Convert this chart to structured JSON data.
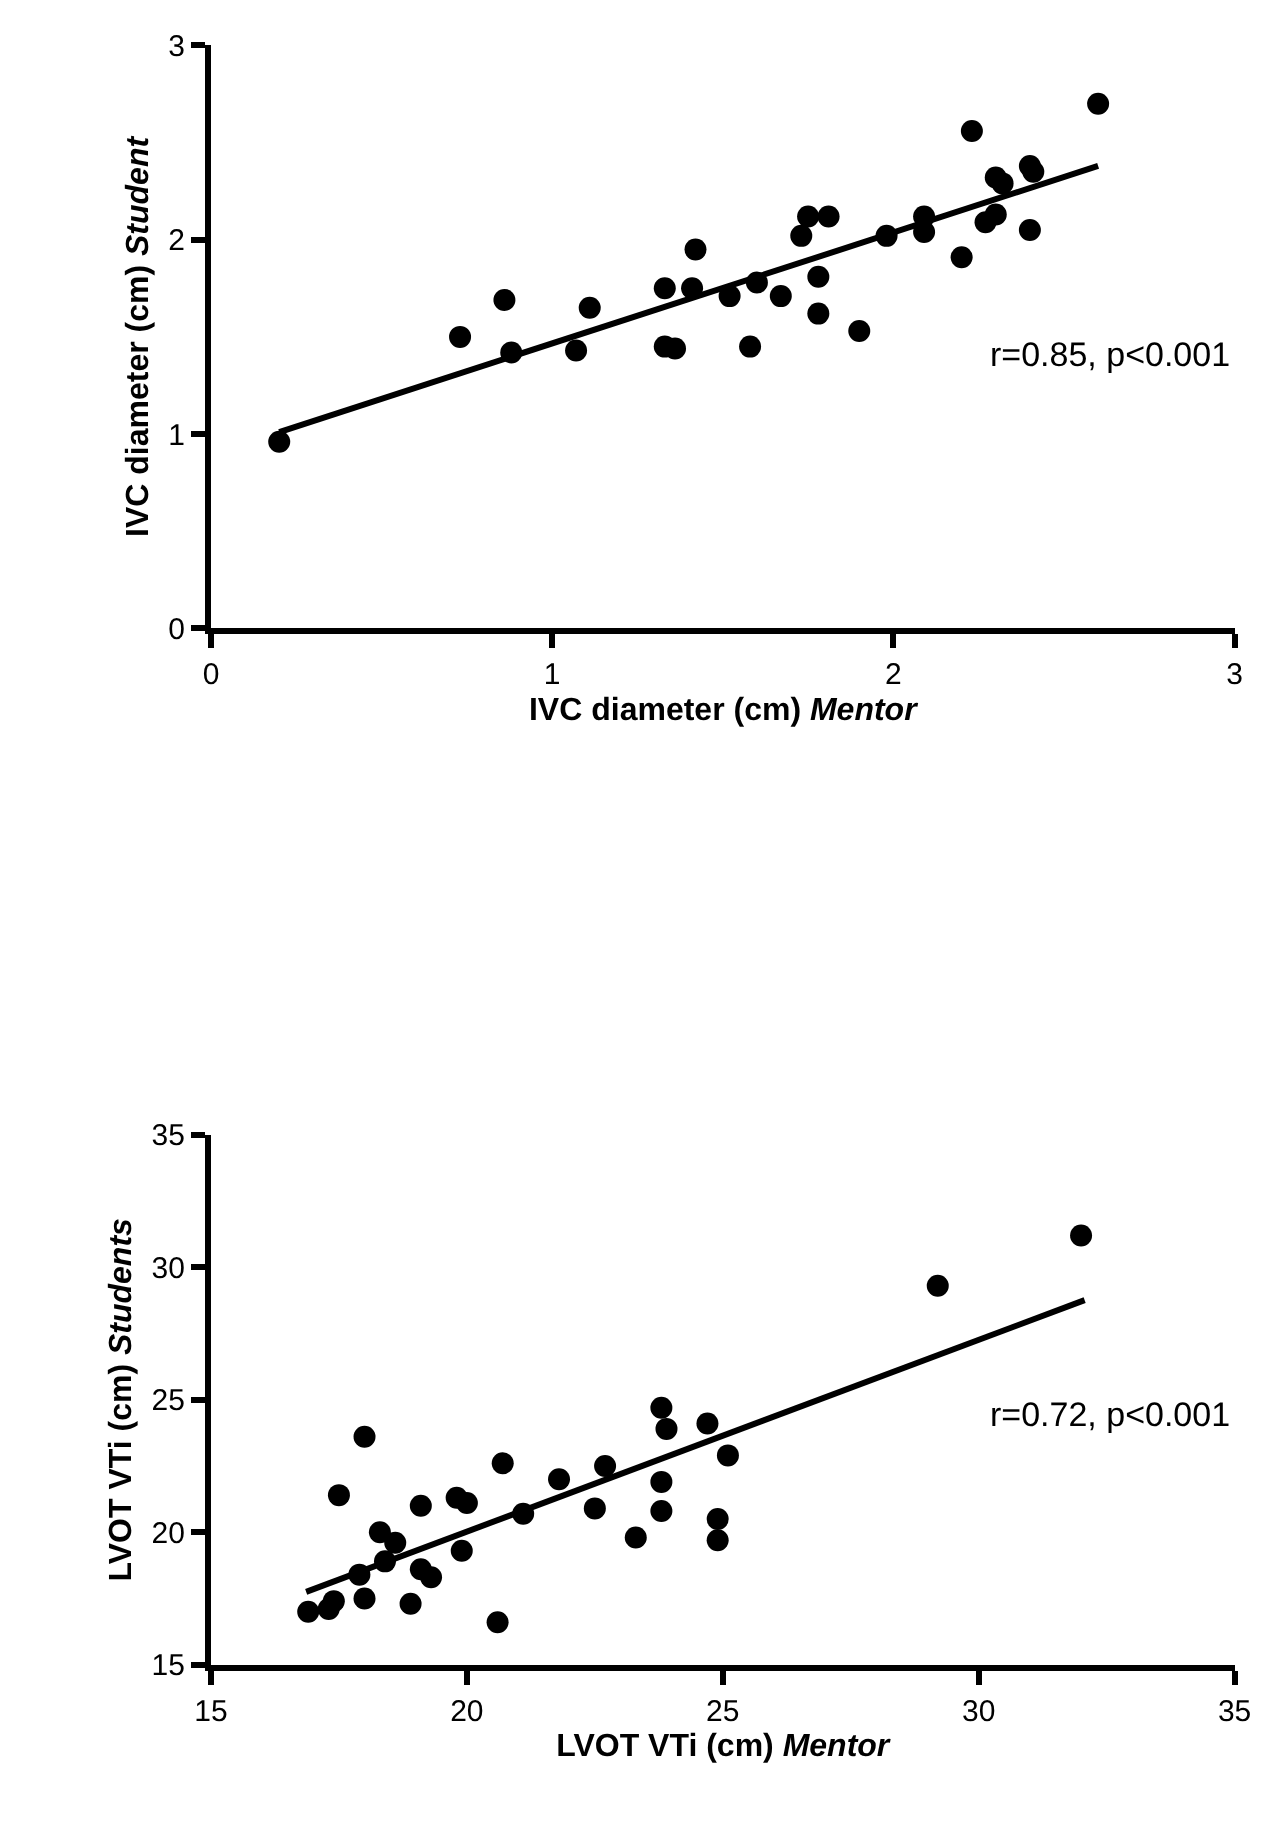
{
  "chart_data": [
    {
      "type": "scatter",
      "xlabel": "IVC diameter (cm) Mentor",
      "ylabel": "IVC diameter (cm) Student",
      "annotations": [
        "r=0.85, p<0.001"
      ],
      "xlim": [
        0,
        3
      ],
      "xticks": [
        0,
        1,
        2,
        3
      ],
      "ylim": [
        0,
        3
      ],
      "yticks": [
        0,
        1,
        2,
        3
      ],
      "series": [
        {
          "color": "#000000",
          "marker": "circle",
          "x": [
            0.2,
            0.73,
            0.86,
            0.88,
            1.07,
            1.11,
            1.33,
            1.33,
            1.36,
            1.41,
            1.42,
            1.52,
            1.58,
            1.6,
            1.67,
            1.73,
            1.75,
            1.78,
            1.78,
            1.81,
            1.9,
            1.98,
            2.09,
            2.09,
            2.2,
            2.23,
            2.27,
            2.3,
            2.3,
            2.32,
            2.4,
            2.41,
            2.4,
            2.6
          ],
          "values": [
            0.96,
            1.5,
            1.69,
            1.42,
            1.43,
            1.65,
            1.75,
            1.45,
            1.44,
            1.75,
            1.95,
            1.71,
            1.45,
            1.78,
            1.71,
            2.02,
            2.12,
            1.81,
            1.62,
            2.12,
            1.53,
            2.02,
            2.12,
            2.04,
            1.91,
            2.56,
            2.09,
            2.13,
            2.32,
            2.29,
            2.38,
            2.35,
            2.05,
            2.7
          ]
        },
        {
          "type": "line",
          "marker": "none",
          "color": "#000000",
          "x": [
            0.2,
            2.6
          ],
          "values": [
            1.01,
            2.38
          ]
        }
      ]
    },
    {
      "type": "scatter",
      "xlabel": "LVOT VTi (cm) Mentor",
      "ylabel": "LVOT VTi (cm) Students",
      "annotations": [
        "r=0.72, p<0.001"
      ],
      "xlim": [
        15,
        35
      ],
      "xticks": [
        15,
        20,
        25,
        30,
        35
      ],
      "ylim": [
        15,
        35
      ],
      "yticks": [
        15,
        20,
        25,
        30,
        35
      ],
      "series": [
        {
          "color": "#000000",
          "marker": "circle",
          "x": [
            16.9,
            17.3,
            17.4,
            17.5,
            17.9,
            18.0,
            18.0,
            18.3,
            18.4,
            18.6,
            18.9,
            19.1,
            19.1,
            19.3,
            19.8,
            20.0,
            19.9,
            20.6,
            20.7,
            21.1,
            21.8,
            22.5,
            22.7,
            23.3,
            23.8,
            23.9,
            23.8,
            23.8,
            24.7,
            24.9,
            24.9,
            25.1,
            29.2,
            32.0
          ],
          "values": [
            17.0,
            17.1,
            17.4,
            21.4,
            18.4,
            23.6,
            17.5,
            20.0,
            18.9,
            19.6,
            17.3,
            21.0,
            18.6,
            18.3,
            21.3,
            21.1,
            19.3,
            16.6,
            22.6,
            20.7,
            22.0,
            20.9,
            22.5,
            19.8,
            24.7,
            23.9,
            21.9,
            20.8,
            24.1,
            20.5,
            19.7,
            22.9,
            29.3,
            31.2
          ]
        },
        {
          "type": "line",
          "marker": "none",
          "color": "#000000",
          "x": [
            16.86,
            32.07
          ],
          "values": [
            17.75,
            28.76
          ]
        }
      ]
    }
  ]
}
